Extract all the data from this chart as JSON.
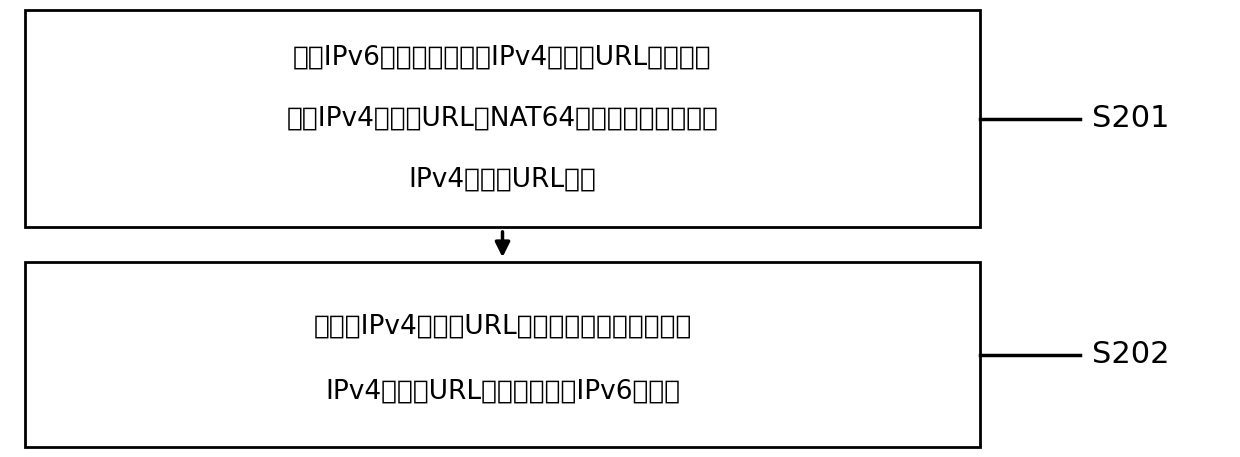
{
  "box1_text_line1": "接收IPv6客户端访问目标IPv4外链的URL的请求，",
  "box1_text_line2": "目标IPv4外链的URL由NAT64网关导流标识和初始",
  "box1_text_line3": "IPv4外链的URL组成",
  "box2_text_line1": "对初始IPv4外链的URL进行访问，并将访问初始",
  "box2_text_line2": "IPv4外链的URL的结果发送给IPv6客户端",
  "label1": "S201",
  "label2": "S202",
  "box_edge_color": "#000000",
  "box_face_color": "#ffffff",
  "text_color": "#000000",
  "arrow_color": "#000000",
  "background_color": "#ffffff",
  "font_size": 19,
  "label_font_size": 22
}
